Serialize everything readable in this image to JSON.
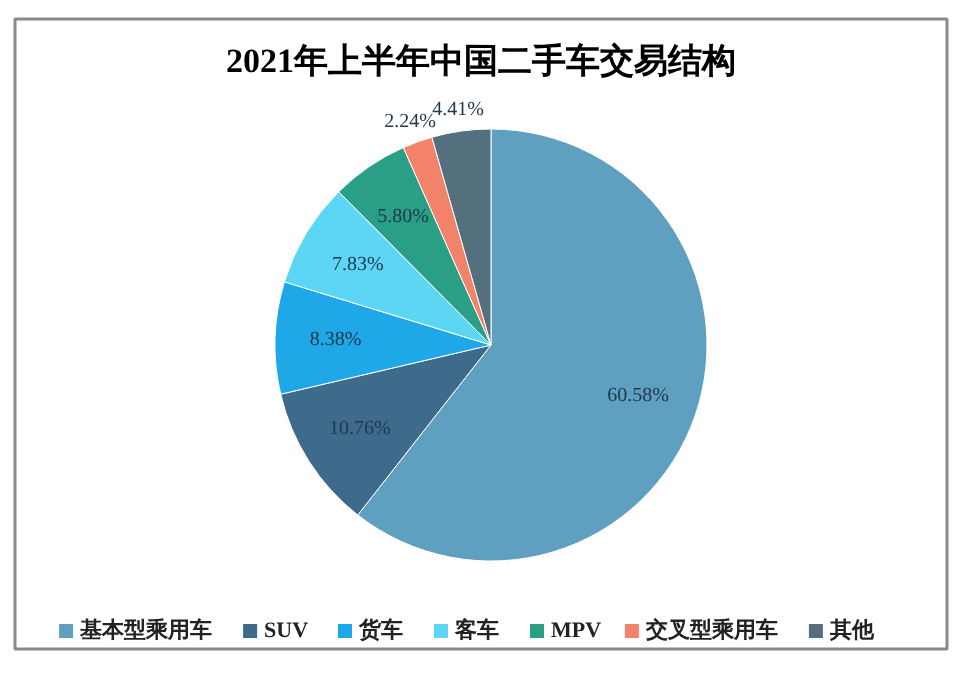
{
  "chart_data": {
    "type": "pie",
    "title": "2021年上半年中国二手车交易结构",
    "categories": [
      "基本型乘用车",
      "SUV",
      "货车",
      "客车",
      "MPV",
      "交叉型乘用车",
      "其他"
    ],
    "values": [
      60.58,
      10.76,
      8.38,
      7.83,
      5.8,
      2.24,
      4.41
    ],
    "value_labels": [
      "60.58%",
      "10.76%",
      "8.38%",
      "7.83%",
      "5.80%",
      "2.24%",
      "4.41%"
    ],
    "colors": [
      "#5fa0c0",
      "#3e6a8c",
      "#1ea8e8",
      "#5dd6f5",
      "#2b9e86",
      "#f3826a",
      "#54707f"
    ],
    "legend": "bottom"
  }
}
